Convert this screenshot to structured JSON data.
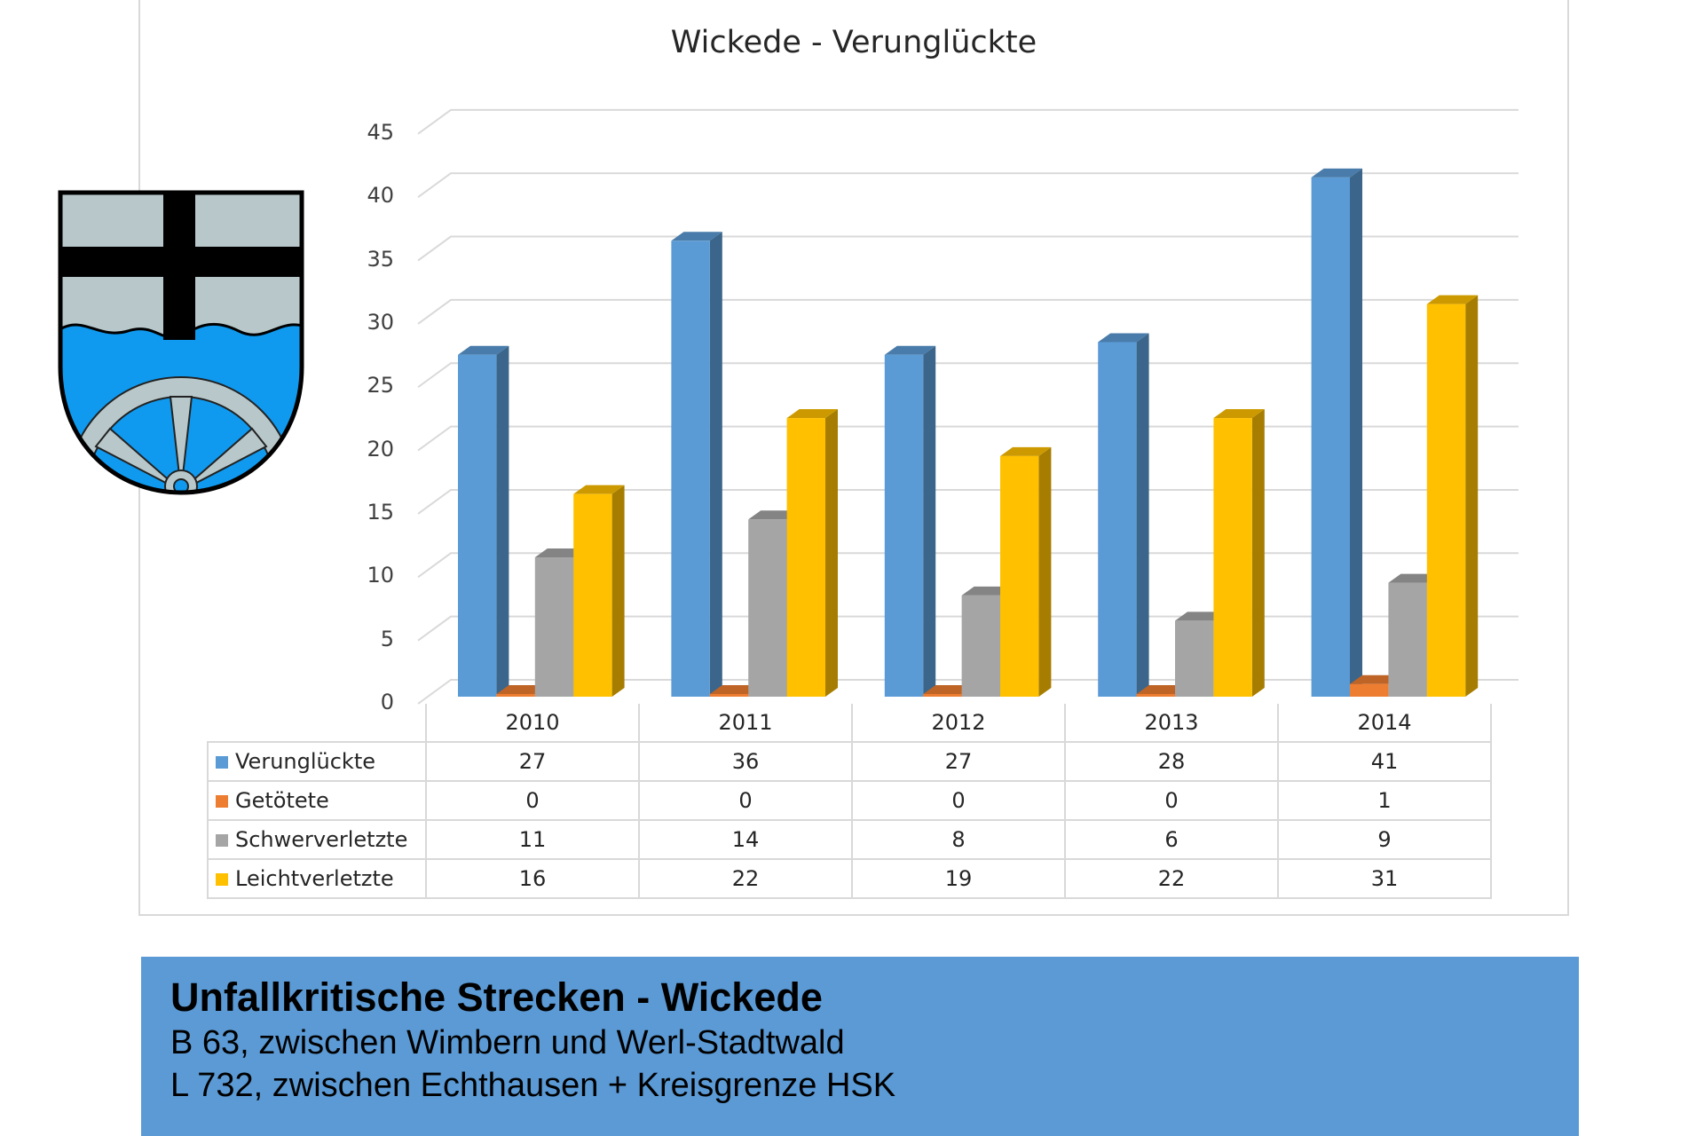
{
  "chart_data": {
    "type": "bar",
    "subtype": "3d-clustered-column-with-data-table",
    "title": "Wickede - Verunglückte",
    "categories": [
      "2010",
      "2011",
      "2012",
      "2013",
      "2014"
    ],
    "series": [
      {
        "name": "Verunglückte",
        "color": "#5b9bd5",
        "values": [
          27,
          36,
          27,
          28,
          41
        ]
      },
      {
        "name": "Getötete",
        "color": "#ed7d31",
        "values": [
          0,
          0,
          0,
          0,
          1
        ]
      },
      {
        "name": "Schwerverletzte",
        "color": "#a5a5a5",
        "values": [
          11,
          14,
          8,
          6,
          9
        ]
      },
      {
        "name": "Leichtverletzte",
        "color": "#ffc000",
        "values": [
          16,
          22,
          19,
          22,
          31
        ]
      }
    ],
    "yticks": [
      "0",
      "5",
      "10",
      "15",
      "20",
      "25",
      "30",
      "35",
      "40",
      "45"
    ],
    "ylim": [
      0,
      45
    ],
    "grid": true,
    "legend": "data-table"
  },
  "emblem": {
    "name": "Wappen Wickede"
  },
  "info": {
    "heading": "Unfallkritische Strecken - Wickede",
    "lines": [
      "B 63, zwischen Wimbern und Werl-Stadtwald",
      "L 732, zwischen Echthausen + Kreisgrenze HSK"
    ]
  }
}
